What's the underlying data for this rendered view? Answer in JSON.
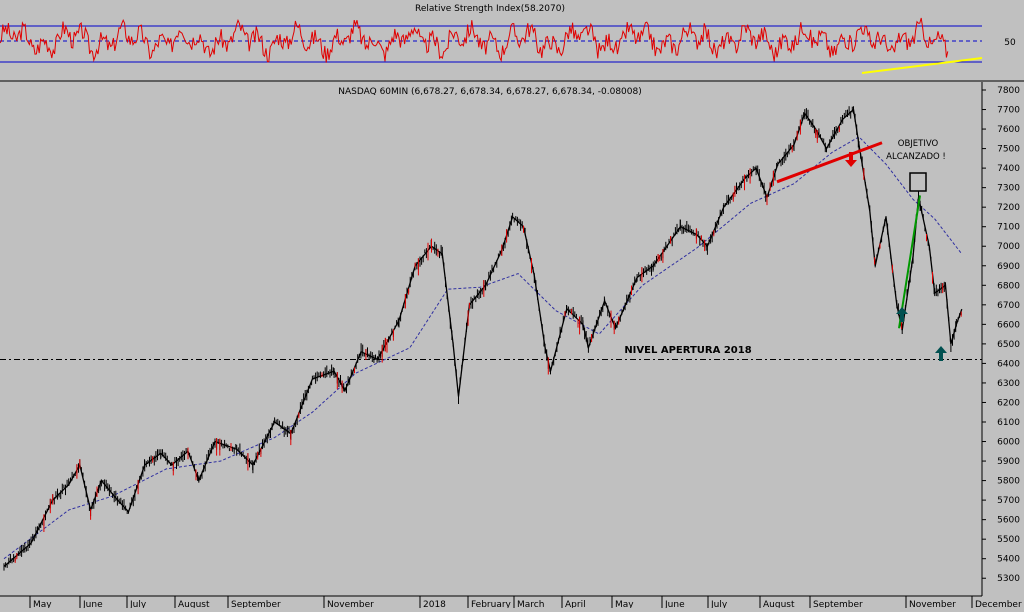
{
  "chart_data": {
    "type": "line",
    "rsi_panel": {
      "title": "Relative Strength Index(58.2070)",
      "y_tick_label": "50",
      "overbought_level": 70,
      "oversold_level": 30,
      "mid_level": 50,
      "series_color": "#e00000",
      "level_color": "#0000cc",
      "trendline_color": "#ffff00"
    },
    "price_panel": {
      "title": "NASDAQ 60MIN (6,678.27, 6,678.34, 6,678.27, 6,678.34, -0.08008)",
      "ylim": [
        5250,
        7800
      ],
      "yticks": [
        5300,
        5400,
        5500,
        5600,
        5700,
        5800,
        5900,
        6000,
        6100,
        6200,
        6300,
        6400,
        6500,
        6600,
        6700,
        6800,
        6900,
        7000,
        7100,
        7200,
        7300,
        7400,
        7500,
        7600,
        7700,
        7800
      ],
      "x_labels": [
        "May",
        "June",
        "July",
        "August",
        "September",
        "November",
        "2018",
        "February",
        "March",
        "April",
        "May",
        "June",
        "July",
        "August",
        "September",
        "November",
        "December"
      ],
      "series": [
        {
          "x": 0,
          "y": 5360
        },
        {
          "x": 5,
          "y": 5480
        },
        {
          "x": 9,
          "y": 5700
        },
        {
          "x": 12,
          "y": 5780
        },
        {
          "x": 14,
          "y": 5880
        },
        {
          "x": 16,
          "y": 5650
        },
        {
          "x": 18,
          "y": 5800
        },
        {
          "x": 21,
          "y": 5700
        },
        {
          "x": 23,
          "y": 5640
        },
        {
          "x": 26,
          "y": 5880
        },
        {
          "x": 29,
          "y": 5940
        },
        {
          "x": 31,
          "y": 5880
        },
        {
          "x": 34,
          "y": 5950
        },
        {
          "x": 36,
          "y": 5800
        },
        {
          "x": 39,
          "y": 6000
        },
        {
          "x": 43,
          "y": 5960
        },
        {
          "x": 46,
          "y": 5880
        },
        {
          "x": 50,
          "y": 6100
        },
        {
          "x": 53,
          "y": 6040
        },
        {
          "x": 57,
          "y": 6320
        },
        {
          "x": 61,
          "y": 6360
        },
        {
          "x": 63,
          "y": 6260
        },
        {
          "x": 66,
          "y": 6460
        },
        {
          "x": 69,
          "y": 6420
        },
        {
          "x": 73,
          "y": 6620
        },
        {
          "x": 76,
          "y": 6900
        },
        {
          "x": 79,
          "y": 7000
        },
        {
          "x": 81,
          "y": 6960
        },
        {
          "x": 83,
          "y": 6500
        },
        {
          "x": 84,
          "y": 6230
        },
        {
          "x": 86,
          "y": 6700
        },
        {
          "x": 89,
          "y": 6800
        },
        {
          "x": 92,
          "y": 6980
        },
        {
          "x": 94,
          "y": 7150
        },
        {
          "x": 96,
          "y": 7100
        },
        {
          "x": 98,
          "y": 6850
        },
        {
          "x": 100,
          "y": 6480
        },
        {
          "x": 101,
          "y": 6360
        },
        {
          "x": 104,
          "y": 6680
        },
        {
          "x": 107,
          "y": 6600
        },
        {
          "x": 108,
          "y": 6480
        },
        {
          "x": 111,
          "y": 6720
        },
        {
          "x": 113,
          "y": 6580
        },
        {
          "x": 117,
          "y": 6840
        },
        {
          "x": 120,
          "y": 6900
        },
        {
          "x": 122,
          "y": 6980
        },
        {
          "x": 125,
          "y": 7100
        },
        {
          "x": 128,
          "y": 7060
        },
        {
          "x": 130,
          "y": 7000
        },
        {
          "x": 133,
          "y": 7200
        },
        {
          "x": 137,
          "y": 7350
        },
        {
          "x": 139,
          "y": 7400
        },
        {
          "x": 141,
          "y": 7250
        },
        {
          "x": 143,
          "y": 7420
        },
        {
          "x": 146,
          "y": 7520
        },
        {
          "x": 148,
          "y": 7680
        },
        {
          "x": 150,
          "y": 7600
        },
        {
          "x": 152,
          "y": 7500
        },
        {
          "x": 155,
          "y": 7650
        },
        {
          "x": 157,
          "y": 7700
        },
        {
          "x": 158,
          "y": 7520
        },
        {
          "x": 160,
          "y": 7180
        },
        {
          "x": 161,
          "y": 6900
        },
        {
          "x": 163,
          "y": 7150
        },
        {
          "x": 165,
          "y": 6700
        },
        {
          "x": 166,
          "y": 6570
        },
        {
          "x": 168,
          "y": 6950
        },
        {
          "x": 169,
          "y": 7250
        },
        {
          "x": 171,
          "y": 7000
        },
        {
          "x": 172,
          "y": 6760
        },
        {
          "x": 174,
          "y": 6800
        },
        {
          "x": 175,
          "y": 6500
        },
        {
          "x": 176,
          "y": 6600
        },
        {
          "x": 177,
          "y": 6678
        }
      ],
      "ma_series": [
        {
          "x": 0,
          "y": 5400
        },
        {
          "x": 12,
          "y": 5650
        },
        {
          "x": 20,
          "y": 5720
        },
        {
          "x": 30,
          "y": 5860
        },
        {
          "x": 40,
          "y": 5900
        },
        {
          "x": 50,
          "y": 6020
        },
        {
          "x": 57,
          "y": 6150
        },
        {
          "x": 65,
          "y": 6350
        },
        {
          "x": 75,
          "y": 6480
        },
        {
          "x": 82,
          "y": 6780
        },
        {
          "x": 88,
          "y": 6790
        },
        {
          "x": 95,
          "y": 6860
        },
        {
          "x": 102,
          "y": 6670
        },
        {
          "x": 110,
          "y": 6550
        },
        {
          "x": 118,
          "y": 6800
        },
        {
          "x": 128,
          "y": 6990
        },
        {
          "x": 138,
          "y": 7220
        },
        {
          "x": 146,
          "y": 7320
        },
        {
          "x": 153,
          "y": 7480
        },
        {
          "x": 158,
          "y": 7560
        },
        {
          "x": 163,
          "y": 7420
        },
        {
          "x": 168,
          "y": 7240
        },
        {
          "x": 172,
          "y": 7140
        },
        {
          "x": 177,
          "y": 6960
        }
      ],
      "x_max": 180,
      "open_level": 6420,
      "annotations": {
        "objetivo_line1": "OBJETIVO",
        "objetivo_line2": "ALCANZADO !",
        "nivel_apertura": "NIVEL APERTURA 2018"
      },
      "colors": {
        "bars": "#000000",
        "ma": "#3030a0",
        "red_trendline": "#e00000",
        "green_line": "#009900",
        "arrow_down": "#e00000",
        "arrow_up": "#005050"
      }
    }
  }
}
